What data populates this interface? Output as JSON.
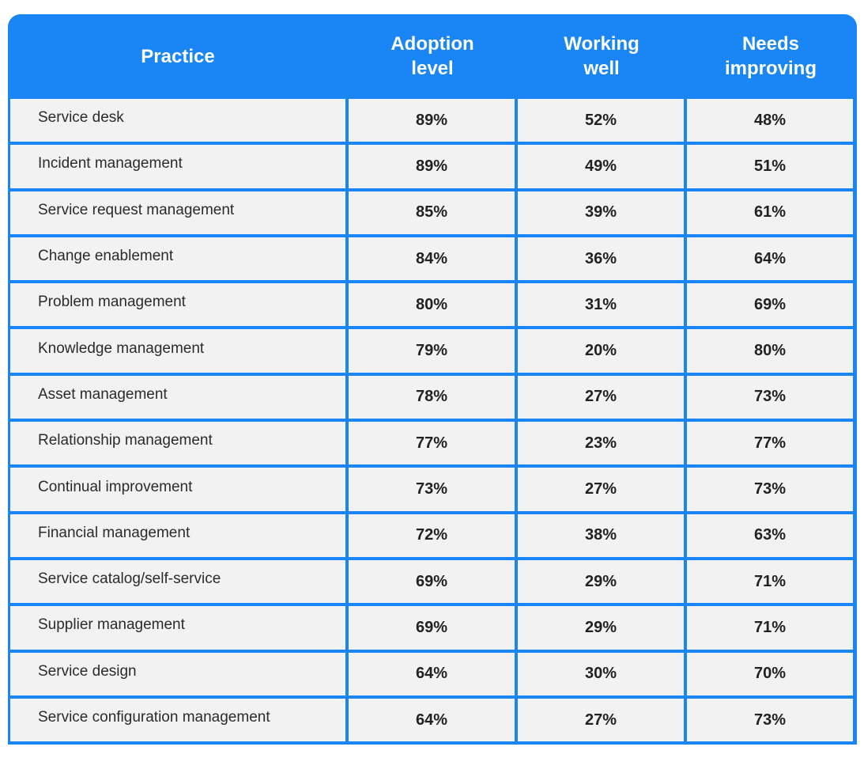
{
  "colors": {
    "header_bg": "#1a86f5",
    "header_text": "#ffffff",
    "cell_bg": "#f2f2f2",
    "cell_text": "#2b2b2b"
  },
  "chart_data": {
    "type": "table",
    "title": "",
    "columns": [
      {
        "lines": [
          "Practice"
        ]
      },
      {
        "lines": [
          "Adoption",
          "level"
        ]
      },
      {
        "lines": [
          "Working",
          "well"
        ]
      },
      {
        "lines": [
          "Needs",
          "improving"
        ]
      }
    ],
    "rows": [
      {
        "practice": "Service desk",
        "adoption": "89%",
        "working_well": "52%",
        "needs_improving": "48%"
      },
      {
        "practice": "Incident management",
        "adoption": "89%",
        "working_well": "49%",
        "needs_improving": "51%"
      },
      {
        "practice": "Service request management",
        "adoption": "85%",
        "working_well": "39%",
        "needs_improving": "61%"
      },
      {
        "practice": "Change enablement",
        "adoption": "84%",
        "working_well": "36%",
        "needs_improving": "64%"
      },
      {
        "practice": "Problem management",
        "adoption": "80%",
        "working_well": "31%",
        "needs_improving": "69%"
      },
      {
        "practice": "Knowledge management",
        "adoption": "79%",
        "working_well": "20%",
        "needs_improving": "80%"
      },
      {
        "practice": "Asset management",
        "adoption": "78%",
        "working_well": "27%",
        "needs_improving": "73%"
      },
      {
        "practice": "Relationship management",
        "adoption": "77%",
        "working_well": "23%",
        "needs_improving": "77%"
      },
      {
        "practice": "Continual improvement",
        "adoption": "73%",
        "working_well": "27%",
        "needs_improving": "73%"
      },
      {
        "practice": "Financial management",
        "adoption": "72%",
        "working_well": "38%",
        "needs_improving": "63%"
      },
      {
        "practice": "Service catalog/self-service",
        "adoption": "69%",
        "working_well": "29%",
        "needs_improving": "71%"
      },
      {
        "practice": "Supplier management",
        "adoption": "69%",
        "working_well": "29%",
        "needs_improving": "71%"
      },
      {
        "practice": "Service design",
        "adoption": "64%",
        "working_well": "30%",
        "needs_improving": "70%"
      },
      {
        "practice": "Service configuration management",
        "adoption": "64%",
        "working_well": "27%",
        "needs_improving": "73%"
      }
    ]
  }
}
